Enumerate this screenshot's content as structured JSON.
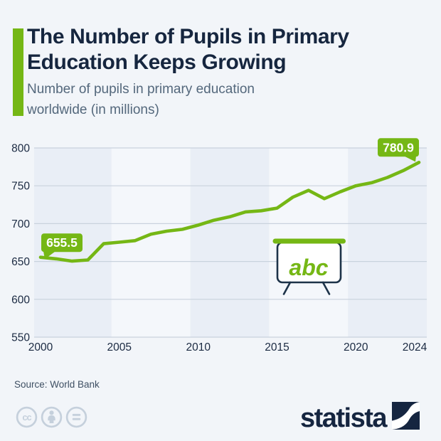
{
  "header": {
    "title": "The Number of Pupils in Primary Education Keeps Growing",
    "subtitle": "Number of pupils in primary education worldwide (in millions)",
    "accent_color": "#75b715"
  },
  "chart_data": {
    "type": "line",
    "title": "Number of pupils in primary education worldwide (in millions)",
    "x": [
      2000,
      2001,
      2002,
      2003,
      2004,
      2005,
      2006,
      2007,
      2008,
      2009,
      2010,
      2011,
      2012,
      2013,
      2014,
      2015,
      2016,
      2017,
      2018,
      2019,
      2020,
      2021,
      2022,
      2023,
      2024
    ],
    "series": [
      {
        "name": "Pupils in primary education (millions)",
        "values": [
          655.5,
          653.5,
          650.5,
          652,
          673.5,
          675.5,
          677.5,
          686,
          690,
          692.5,
          698,
          704.5,
          709,
          715.5,
          717,
          720.5,
          735,
          744,
          733,
          742,
          750,
          754,
          761,
          770,
          780.9
        ]
      }
    ],
    "ylim": [
      550,
      800
    ],
    "ytick_step": 50,
    "xticks": [
      2000,
      2005,
      2010,
      2015,
      2020,
      2024
    ],
    "grid": "horizontal",
    "legend": "none",
    "line_color": "#75b715",
    "band_edges": [
      2004.5,
      2009.5,
      2014.5,
      2019.5
    ],
    "band_colors": [
      "#e9eef6",
      "#f4f7fb"
    ],
    "annotations": [
      {
        "x": 2000,
        "text": "655.5",
        "anchor": "start"
      },
      {
        "x": 2024,
        "text": "780.9",
        "anchor": "end"
      }
    ]
  },
  "chart_icon": {
    "text": "abc"
  },
  "footer": {
    "source": "Source: World Bank",
    "logo_text": "statista",
    "license_icons": [
      "cc-icon",
      "attribution-icon",
      "equals-icon"
    ]
  }
}
